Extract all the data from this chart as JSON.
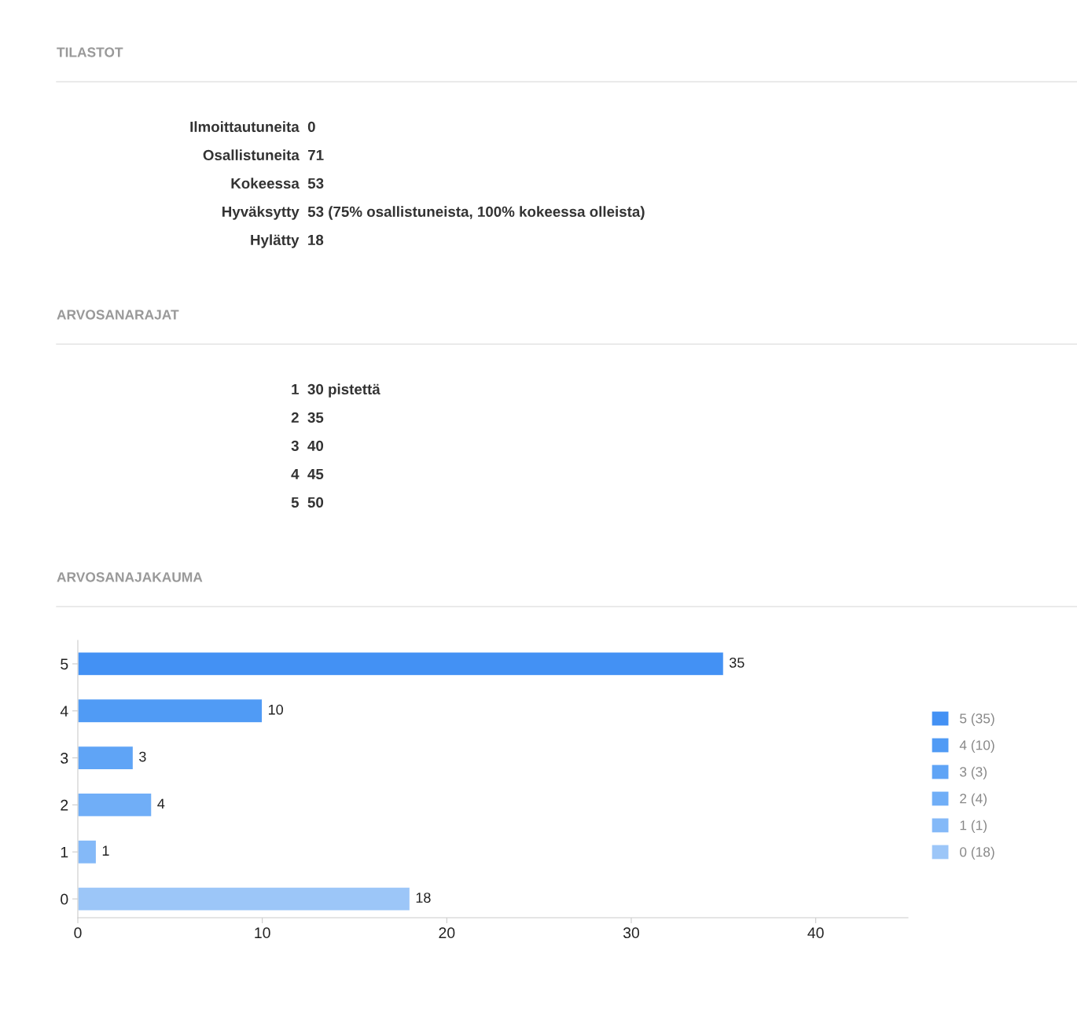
{
  "chart_data": [
    {
      "type": "other",
      "title": "TILASTOT",
      "annotations": [
        "Ilmoittautuneita  0",
        "Osallistuneita  71",
        "Kokeessa  53",
        "Hyväksytty  53 (75% osallistuneista, 100% kokeessa olleista)",
        "Hylätty  18"
      ]
    },
    {
      "type": "other",
      "title": "ARVOSANARAJAT",
      "annotations": [
        "1  30 pistettä",
        "2  35",
        "3  40",
        "4  45",
        "5  50"
      ]
    },
    {
      "type": "bar",
      "title": "ARVOSANAJAKAUMA",
      "orientation": "horizontal",
      "categories": [
        "5",
        "4",
        "3",
        "2",
        "1",
        "0"
      ],
      "series": [
        {
          "name": "5 (35)",
          "color": "#4391f4",
          "values": [
            35,
            null,
            null,
            null,
            null,
            null
          ]
        },
        {
          "name": "4 (10)",
          "color": "#509bf5",
          "values": [
            null,
            10,
            null,
            null,
            null,
            null
          ]
        },
        {
          "name": "3 (3)",
          "color": "#5fa4f6",
          "values": [
            null,
            null,
            3,
            null,
            null,
            null
          ]
        },
        {
          "name": "2 (4)",
          "color": "#70aef7",
          "values": [
            null,
            null,
            null,
            4,
            null,
            null
          ]
        },
        {
          "name": "1 (1)",
          "color": "#84b9f8",
          "values": [
            null,
            null,
            null,
            null,
            1,
            null
          ]
        },
        {
          "name": "0 (18)",
          "color": "#9cc6f8",
          "values": [
            null,
            null,
            null,
            null,
            null,
            18
          ]
        }
      ],
      "xlim": [
        0,
        45
      ],
      "xticks": [
        0,
        10,
        20,
        30,
        40
      ],
      "data_labels": true,
      "legend": "right",
      "grid": false
    }
  ]
}
